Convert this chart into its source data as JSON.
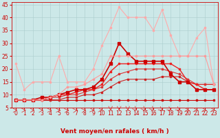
{
  "xlabel": "Vent moyen/en rafales ( km/h )",
  "background_color": "#cce8e8",
  "grid_color": "#aacccc",
  "xlim": [
    -0.5,
    23.5
  ],
  "ylim": [
    5,
    46
  ],
  "yticks": [
    5,
    10,
    15,
    20,
    25,
    30,
    35,
    40,
    45
  ],
  "xticks": [
    0,
    1,
    2,
    3,
    4,
    5,
    6,
    7,
    8,
    9,
    10,
    11,
    12,
    13,
    14,
    15,
    16,
    17,
    18,
    19,
    20,
    21,
    22,
    23
  ],
  "series": [
    {
      "x": [
        0,
        1,
        2,
        3,
        4,
        5,
        6,
        7,
        8,
        9,
        10,
        11,
        12,
        13,
        14,
        15,
        16,
        17,
        18,
        19,
        20,
        21,
        22,
        23
      ],
      "y": [
        8,
        8,
        8,
        8,
        8,
        8,
        8,
        8,
        8,
        8,
        8,
        8,
        8,
        8,
        8,
        8,
        8,
        8,
        8,
        8,
        8,
        8,
        8,
        8
      ],
      "color": "#cc0000",
      "linewidth": 0.8,
      "marker": "s",
      "markersize": 1.5
    },
    {
      "x": [
        0,
        1,
        2,
        3,
        4,
        5,
        6,
        7,
        8,
        9,
        10,
        11,
        12,
        13,
        14,
        15,
        16,
        17,
        18,
        19,
        20,
        21,
        22,
        23
      ],
      "y": [
        8,
        8,
        8,
        8,
        8,
        8,
        9,
        9,
        10,
        10,
        11,
        13,
        15,
        16,
        16,
        16,
        16,
        17,
        17,
        17,
        15,
        14,
        14,
        14
      ],
      "color": "#cc2222",
      "linewidth": 0.8,
      "marker": "s",
      "markersize": 1.5
    },
    {
      "x": [
        0,
        1,
        2,
        3,
        4,
        5,
        6,
        7,
        8,
        9,
        10,
        11,
        12,
        13,
        14,
        15,
        16,
        17,
        18,
        19,
        20,
        21,
        22,
        23
      ],
      "y": [
        8,
        8,
        8,
        8,
        9,
        9,
        10,
        10,
        11,
        12,
        13,
        16,
        18,
        19,
        20,
        20,
        20,
        20,
        19,
        18,
        16,
        14,
        14,
        14
      ],
      "color": "#dd3333",
      "linewidth": 0.8,
      "marker": "s",
      "markersize": 1.5
    },
    {
      "x": [
        0,
        1,
        2,
        3,
        4,
        5,
        6,
        7,
        8,
        9,
        10,
        11,
        12,
        13,
        14,
        15,
        16,
        17,
        18,
        19,
        20,
        21,
        22,
        23
      ],
      "y": [
        8,
        8,
        8,
        8,
        9,
        10,
        10,
        11,
        12,
        12,
        14,
        19,
        22,
        22,
        22,
        22,
        22,
        22,
        22,
        20,
        15,
        14,
        12,
        12
      ],
      "color": "#ee2222",
      "linewidth": 1.0,
      "marker": "s",
      "markersize": 2.0
    },
    {
      "x": [
        0,
        1,
        2,
        3,
        4,
        5,
        6,
        7,
        8,
        9,
        10,
        11,
        12,
        13,
        14,
        15,
        16,
        17,
        18,
        19,
        20,
        21,
        22,
        23
      ],
      "y": [
        8,
        8,
        8,
        9,
        9,
        10,
        11,
        12,
        12,
        13,
        16,
        22,
        30,
        26,
        23,
        23,
        23,
        23,
        18,
        15,
        15,
        12,
        12,
        12
      ],
      "color": "#cc0000",
      "linewidth": 1.2,
      "marker": "s",
      "markersize": 2.5
    },
    {
      "x": [
        0,
        1,
        2,
        3,
        4,
        5,
        6,
        7,
        8,
        9,
        10,
        11,
        12,
        13,
        14,
        15,
        16,
        17,
        18,
        19,
        20,
        21,
        22,
        23
      ],
      "y": [
        22,
        12,
        15,
        15,
        15,
        25,
        15,
        15,
        15,
        20,
        29,
        36,
        44,
        40,
        40,
        40,
        35,
        43,
        33,
        25,
        25,
        32,
        36,
        14
      ],
      "color": "#ffaaaa",
      "linewidth": 0.8,
      "marker": "s",
      "markersize": 2.0
    },
    {
      "x": [
        0,
        1,
        2,
        3,
        4,
        5,
        6,
        7,
        8,
        9,
        10,
        11,
        12,
        13,
        14,
        15,
        16,
        17,
        18,
        19,
        20,
        21,
        22,
        23
      ],
      "y": [
        8,
        8,
        8,
        8,
        9,
        10,
        13,
        13,
        14,
        16,
        18,
        25,
        25,
        25,
        25,
        25,
        25,
        25,
        25,
        25,
        25,
        25,
        25,
        14
      ],
      "color": "#ff9999",
      "linewidth": 0.8,
      "marker": "s",
      "markersize": 2.0
    }
  ],
  "xlabel_color": "#cc0000",
  "tick_color": "#cc0000",
  "tick_fontsize": 5.5,
  "xlabel_fontsize": 6.5
}
